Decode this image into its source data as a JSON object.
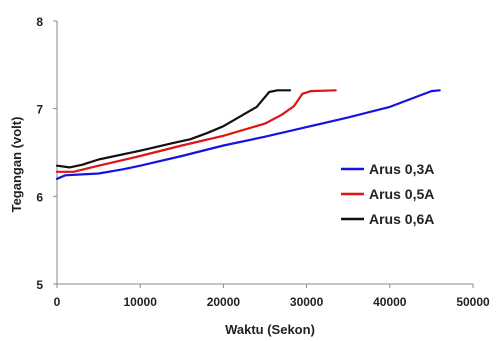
{
  "chart_data": {
    "type": "line",
    "title": "",
    "xlabel": "Waktu (Sekon)",
    "ylabel": "Tegangan (volt)",
    "xlim": [
      0,
      50000
    ],
    "ylim": [
      5,
      8
    ],
    "x_ticks": [
      "0",
      "10000",
      "20000",
      "30000",
      "40000",
      "50000"
    ],
    "y_ticks": [
      "5",
      "6",
      "7",
      "8"
    ],
    "grid": false,
    "legend_position": "right",
    "series": [
      {
        "name": "Arus 0,3A",
        "color": "#1414e0",
        "points": [
          [
            0,
            6.2
          ],
          [
            1000,
            6.24
          ],
          [
            3000,
            6.25
          ],
          [
            5000,
            6.26
          ],
          [
            8000,
            6.31
          ],
          [
            10000,
            6.35
          ],
          [
            15000,
            6.46
          ],
          [
            20000,
            6.58
          ],
          [
            25000,
            6.68
          ],
          [
            30000,
            6.79
          ],
          [
            35000,
            6.9
          ],
          [
            40000,
            7.02
          ],
          [
            45000,
            7.2
          ],
          [
            46000,
            7.21
          ]
        ]
      },
      {
        "name": "Arus 0,5A",
        "color": "#e01414",
        "points": [
          [
            0,
            6.28
          ],
          [
            2000,
            6.28
          ],
          [
            5000,
            6.35
          ],
          [
            10000,
            6.46
          ],
          [
            15000,
            6.58
          ],
          [
            20000,
            6.69
          ],
          [
            25000,
            6.83
          ],
          [
            27000,
            6.93
          ],
          [
            28500,
            7.03
          ],
          [
            29500,
            7.17
          ],
          [
            30500,
            7.2
          ],
          [
            33500,
            7.21
          ]
        ]
      },
      {
        "name": "Arus 0,6A",
        "color": "#111111",
        "points": [
          [
            0,
            6.35
          ],
          [
            1500,
            6.33
          ],
          [
            3000,
            6.36
          ],
          [
            5000,
            6.42
          ],
          [
            10000,
            6.52
          ],
          [
            14000,
            6.61
          ],
          [
            16000,
            6.65
          ],
          [
            18000,
            6.72
          ],
          [
            20000,
            6.8
          ],
          [
            22000,
            6.91
          ],
          [
            24000,
            7.02
          ],
          [
            25500,
            7.19
          ],
          [
            26500,
            7.21
          ],
          [
            28000,
            7.21
          ]
        ]
      }
    ]
  }
}
